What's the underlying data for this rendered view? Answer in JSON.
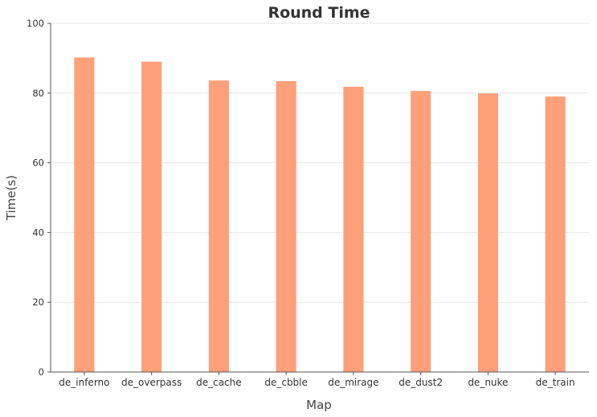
{
  "chart_data": {
    "type": "bar",
    "title": "Round Time",
    "xlabel": "Map",
    "ylabel": "Time(s)",
    "categories": [
      "de_inferno",
      "de_overpass",
      "de_cache",
      "de_cbble",
      "de_mirage",
      "de_dust2",
      "de_nuke",
      "de_train"
    ],
    "values": [
      90.2,
      89.0,
      83.6,
      83.4,
      81.8,
      80.6,
      79.9,
      79.0
    ],
    "ylim": [
      0,
      100
    ],
    "yticks": [
      0,
      20,
      40,
      60,
      80,
      100
    ],
    "grid": true,
    "bar_color": "#FFA07A"
  }
}
